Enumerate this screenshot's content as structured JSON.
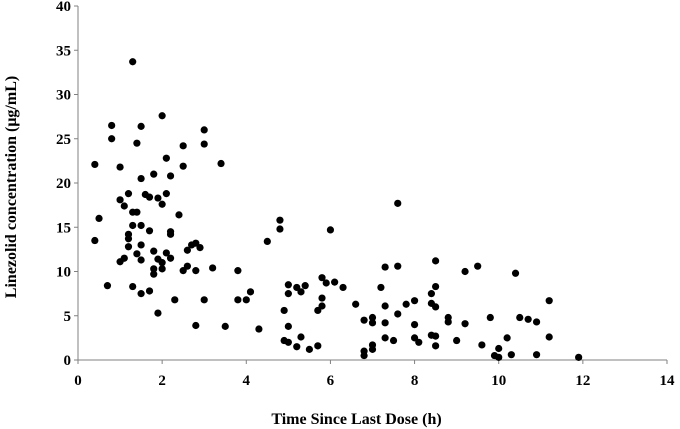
{
  "chart_data": {
    "type": "scatter",
    "title": "",
    "xlabel": "Time Since Last Dose (h)",
    "ylabel": "Linezolid concentration (μg/mL)",
    "xlim": [
      0,
      14
    ],
    "ylim": [
      0,
      40
    ],
    "xticks": [
      0,
      2,
      4,
      6,
      8,
      10,
      12,
      14
    ],
    "yticks": [
      0,
      5,
      10,
      15,
      20,
      25,
      30,
      35,
      40
    ],
    "xtick_labels": [
      "0",
      "2",
      "4",
      "6",
      "8",
      "10",
      "12",
      "14"
    ],
    "ytick_labels": [
      "0",
      "5",
      "10",
      "15",
      "20",
      "25",
      "30",
      "35",
      "40"
    ],
    "grid": false,
    "legend": "none",
    "marker_color": "#000000",
    "points": [
      [
        0.4,
        22.1
      ],
      [
        0.4,
        13.5
      ],
      [
        0.5,
        16.0
      ],
      [
        0.7,
        8.4
      ],
      [
        0.8,
        26.5
      ],
      [
        0.8,
        25.0
      ],
      [
        1.0,
        21.8
      ],
      [
        1.0,
        18.1
      ],
      [
        1.0,
        11.1
      ],
      [
        1.1,
        17.4
      ],
      [
        1.1,
        11.5
      ],
      [
        1.2,
        18.8
      ],
      [
        1.2,
        14.2
      ],
      [
        1.2,
        13.7
      ],
      [
        1.2,
        12.8
      ],
      [
        1.3,
        33.7
      ],
      [
        1.3,
        16.7
      ],
      [
        1.3,
        15.2
      ],
      [
        1.3,
        8.3
      ],
      [
        1.4,
        24.5
      ],
      [
        1.4,
        16.7
      ],
      [
        1.4,
        12.0
      ],
      [
        1.5,
        26.4
      ],
      [
        1.5,
        20.5
      ],
      [
        1.5,
        15.2
      ],
      [
        1.5,
        13.0
      ],
      [
        1.5,
        11.3
      ],
      [
        1.5,
        7.5
      ],
      [
        1.6,
        18.7
      ],
      [
        1.7,
        18.4
      ],
      [
        1.7,
        14.6
      ],
      [
        1.7,
        7.8
      ],
      [
        1.8,
        21.0
      ],
      [
        1.8,
        12.3
      ],
      [
        1.8,
        10.3
      ],
      [
        1.8,
        9.7
      ],
      [
        1.9,
        18.3
      ],
      [
        1.9,
        11.4
      ],
      [
        1.9,
        5.3
      ],
      [
        2.0,
        27.6
      ],
      [
        2.0,
        17.6
      ],
      [
        2.0,
        11.0
      ],
      [
        2.0,
        10.3
      ],
      [
        2.1,
        22.8
      ],
      [
        2.1,
        18.8
      ],
      [
        2.1,
        12.1
      ],
      [
        2.2,
        20.8
      ],
      [
        2.2,
        14.5
      ],
      [
        2.2,
        14.2
      ],
      [
        2.2,
        11.5
      ],
      [
        2.3,
        6.8
      ],
      [
        2.4,
        16.4
      ],
      [
        2.5,
        24.2
      ],
      [
        2.5,
        21.9
      ],
      [
        2.5,
        10.1
      ],
      [
        2.6,
        12.4
      ],
      [
        2.6,
        10.6
      ],
      [
        2.7,
        13.0
      ],
      [
        2.8,
        13.2
      ],
      [
        2.8,
        10.1
      ],
      [
        2.8,
        3.9
      ],
      [
        2.9,
        12.7
      ],
      [
        3.0,
        26.0
      ],
      [
        3.0,
        24.4
      ],
      [
        3.0,
        6.8
      ],
      [
        3.2,
        10.4
      ],
      [
        3.4,
        22.2
      ],
      [
        3.5,
        3.8
      ],
      [
        3.8,
        10.1
      ],
      [
        3.8,
        6.8
      ],
      [
        4.0,
        6.8
      ],
      [
        4.1,
        7.7
      ],
      [
        4.3,
        3.5
      ],
      [
        4.5,
        13.4
      ],
      [
        4.8,
        15.8
      ],
      [
        4.8,
        14.8
      ],
      [
        4.9,
        5.6
      ],
      [
        4.9,
        2.2
      ],
      [
        5.0,
        8.5
      ],
      [
        5.0,
        7.5
      ],
      [
        5.0,
        3.8
      ],
      [
        5.0,
        2.0
      ],
      [
        5.2,
        8.2
      ],
      [
        5.2,
        1.5
      ],
      [
        5.3,
        7.7
      ],
      [
        5.3,
        2.6
      ],
      [
        5.4,
        8.4
      ],
      [
        5.5,
        1.2
      ],
      [
        5.7,
        5.6
      ],
      [
        5.7,
        1.6
      ],
      [
        5.8,
        9.3
      ],
      [
        5.8,
        7.0
      ],
      [
        5.8,
        6.1
      ],
      [
        5.9,
        8.7
      ],
      [
        6.0,
        14.7
      ],
      [
        6.1,
        8.8
      ],
      [
        6.3,
        8.2
      ],
      [
        6.6,
        6.3
      ],
      [
        6.8,
        4.5
      ],
      [
        6.8,
        1.0
      ],
      [
        6.8,
        0.5
      ],
      [
        7.0,
        4.8
      ],
      [
        7.0,
        4.2
      ],
      [
        7.0,
        1.7
      ],
      [
        7.0,
        1.2
      ],
      [
        7.2,
        8.2
      ],
      [
        7.3,
        10.5
      ],
      [
        7.3,
        6.1
      ],
      [
        7.3,
        4.2
      ],
      [
        7.3,
        2.5
      ],
      [
        7.5,
        2.2
      ],
      [
        7.6,
        17.7
      ],
      [
        7.6,
        10.6
      ],
      [
        7.6,
        5.2
      ],
      [
        7.8,
        6.3
      ],
      [
        8.0,
        6.7
      ],
      [
        8.0,
        4.0
      ],
      [
        8.0,
        2.5
      ],
      [
        8.1,
        2.0
      ],
      [
        8.4,
        7.5
      ],
      [
        8.4,
        6.4
      ],
      [
        8.4,
        2.8
      ],
      [
        8.5,
        11.2
      ],
      [
        8.5,
        8.3
      ],
      [
        8.5,
        6.0
      ],
      [
        8.5,
        2.7
      ],
      [
        8.5,
        1.6
      ],
      [
        8.8,
        4.8
      ],
      [
        8.8,
        4.3
      ],
      [
        9.0,
        2.2
      ],
      [
        9.2,
        10.0
      ],
      [
        9.2,
        4.1
      ],
      [
        9.5,
        10.6
      ],
      [
        9.6,
        1.7
      ],
      [
        9.8,
        4.8
      ],
      [
        9.9,
        0.5
      ],
      [
        10.0,
        1.3
      ],
      [
        10.0,
        0.3
      ],
      [
        10.2,
        2.5
      ],
      [
        10.3,
        0.6
      ],
      [
        10.4,
        9.8
      ],
      [
        10.5,
        4.8
      ],
      [
        10.7,
        4.6
      ],
      [
        10.9,
        4.3
      ],
      [
        10.9,
        0.6
      ],
      [
        11.2,
        6.7
      ],
      [
        11.2,
        2.6
      ],
      [
        11.9,
        0.3
      ]
    ]
  }
}
